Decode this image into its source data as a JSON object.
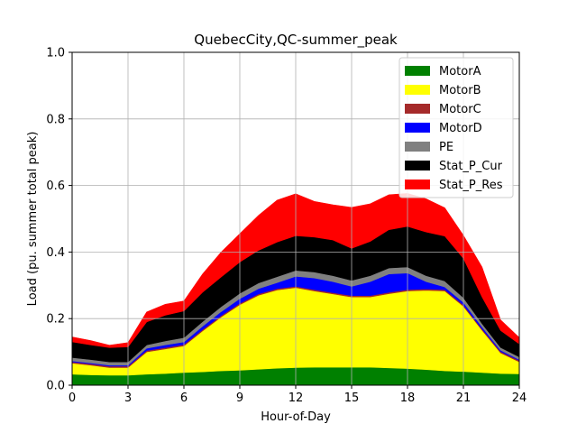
{
  "chart_data": {
    "type": "area",
    "stacked": true,
    "title": "QuebecCity,QC-summer_peak",
    "xlabel": "Hour-of-Day",
    "ylabel": "Load (pu. summer total peak)",
    "xlim": [
      0,
      24
    ],
    "ylim": [
      0,
      1.0
    ],
    "xticks": [
      0,
      3,
      6,
      9,
      12,
      15,
      18,
      21,
      24
    ],
    "yticks": [
      0.0,
      0.2,
      0.4,
      0.6,
      0.8,
      1.0
    ],
    "ytick_labels": [
      "0.0",
      "0.2",
      "0.4",
      "0.6",
      "0.8",
      "1.0"
    ],
    "grid": true,
    "legend_position": "upper right",
    "x": [
      0,
      1,
      2,
      3,
      4,
      5,
      6,
      7,
      8,
      9,
      10,
      11,
      12,
      13,
      14,
      15,
      16,
      17,
      18,
      19,
      20,
      21,
      22,
      23,
      24
    ],
    "series": [
      {
        "name": "MotorA",
        "color": "#008000",
        "values": [
          0.033,
          0.031,
          0.03,
          0.03,
          0.033,
          0.035,
          0.038,
          0.04,
          0.043,
          0.045,
          0.048,
          0.051,
          0.053,
          0.054,
          0.054,
          0.054,
          0.054,
          0.052,
          0.05,
          0.047,
          0.043,
          0.041,
          0.038,
          0.035,
          0.034
        ]
      },
      {
        "name": "MotorB",
        "color": "#ffff00",
        "values": [
          0.033,
          0.029,
          0.023,
          0.023,
          0.067,
          0.074,
          0.08,
          0.123,
          0.162,
          0.197,
          0.222,
          0.235,
          0.24,
          0.229,
          0.22,
          0.211,
          0.211,
          0.223,
          0.233,
          0.238,
          0.24,
          0.196,
          0.127,
          0.062,
          0.036
        ]
      },
      {
        "name": "MotorC",
        "color": "#a52a2a",
        "values": [
          0.004,
          0.004,
          0.004,
          0.004,
          0.004,
          0.004,
          0.004,
          0.004,
          0.004,
          0.004,
          0.004,
          0.004,
          0.004,
          0.004,
          0.004,
          0.004,
          0.004,
          0.004,
          0.004,
          0.004,
          0.004,
          0.004,
          0.004,
          0.004,
          0.004
        ]
      },
      {
        "name": "MotorD",
        "color": "#0000ff",
        "values": [
          0.003,
          0.003,
          0.003,
          0.003,
          0.007,
          0.008,
          0.008,
          0.01,
          0.012,
          0.014,
          0.016,
          0.018,
          0.03,
          0.035,
          0.033,
          0.028,
          0.042,
          0.055,
          0.05,
          0.022,
          0.008,
          0.008,
          0.006,
          0.004,
          0.003
        ]
      },
      {
        "name": "PE",
        "color": "#808080",
        "values": [
          0.01,
          0.01,
          0.01,
          0.01,
          0.01,
          0.012,
          0.013,
          0.014,
          0.015,
          0.016,
          0.017,
          0.018,
          0.018,
          0.018,
          0.018,
          0.018,
          0.018,
          0.018,
          0.018,
          0.018,
          0.018,
          0.014,
          0.01,
          0.008,
          0.008
        ]
      },
      {
        "name": "Stat_P_Cur",
        "color": "#000000",
        "values": [
          0.047,
          0.044,
          0.043,
          0.045,
          0.069,
          0.077,
          0.08,
          0.088,
          0.089,
          0.094,
          0.098,
          0.104,
          0.104,
          0.105,
          0.107,
          0.096,
          0.103,
          0.115,
          0.122,
          0.131,
          0.135,
          0.118,
          0.08,
          0.051,
          0.039
        ]
      },
      {
        "name": "Stat_P_Res",
        "color": "#ff0000",
        "values": [
          0.015,
          0.013,
          0.007,
          0.013,
          0.03,
          0.033,
          0.03,
          0.055,
          0.075,
          0.085,
          0.105,
          0.126,
          0.126,
          0.107,
          0.106,
          0.123,
          0.113,
          0.105,
          0.099,
          0.1,
          0.085,
          0.069,
          0.09,
          0.032,
          0.019
        ]
      }
    ]
  }
}
